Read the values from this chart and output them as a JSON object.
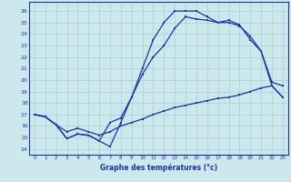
{
  "xlabel": "Graphe des températures (°c)",
  "background_color": "#cce8ec",
  "grid_color": "#aacdd4",
  "line_color": "#1a35a0",
  "xlim": [
    -0.5,
    23.5
  ],
  "ylim": [
    13.5,
    26.8
  ],
  "xticks": [
    0,
    1,
    2,
    3,
    4,
    5,
    6,
    7,
    8,
    9,
    10,
    11,
    12,
    13,
    14,
    15,
    16,
    17,
    18,
    19,
    20,
    21,
    22,
    23
  ],
  "yticks": [
    14,
    15,
    16,
    17,
    18,
    19,
    20,
    21,
    22,
    23,
    24,
    25,
    26
  ],
  "line1_x": [
    0,
    1,
    2,
    3,
    4,
    5,
    6,
    7,
    8,
    9,
    10,
    11,
    12,
    13,
    14,
    15,
    16,
    17,
    18,
    19,
    20,
    21,
    22,
    23
  ],
  "line1_y": [
    17.0,
    16.8,
    16.1,
    14.9,
    15.3,
    15.2,
    14.7,
    14.2,
    16.3,
    18.5,
    21.0,
    23.5,
    25.0,
    26.0,
    26.0,
    26.0,
    25.5,
    25.0,
    25.0,
    24.7,
    23.8,
    22.5,
    19.8,
    19.5
  ],
  "line2_x": [
    0,
    1,
    2,
    3,
    4,
    5,
    6,
    7,
    8,
    9,
    10,
    11,
    12,
    13,
    14,
    15,
    16,
    17,
    18,
    19,
    20,
    21,
    22,
    23
  ],
  "line2_y": [
    17.0,
    16.8,
    16.1,
    14.9,
    15.3,
    15.2,
    14.7,
    16.3,
    16.7,
    18.5,
    20.5,
    22.0,
    23.0,
    24.5,
    25.5,
    25.3,
    25.2,
    25.0,
    25.2,
    24.8,
    23.5,
    22.5,
    19.5,
    18.5
  ],
  "line3_x": [
    0,
    1,
    2,
    3,
    4,
    5,
    6,
    7,
    8,
    9,
    10,
    11,
    12,
    13,
    14,
    15,
    16,
    17,
    18,
    19,
    20,
    21,
    22,
    23
  ],
  "line3_y": [
    17.0,
    16.8,
    16.1,
    15.5,
    15.8,
    15.5,
    15.2,
    15.5,
    16.0,
    16.3,
    16.6,
    17.0,
    17.3,
    17.6,
    17.8,
    18.0,
    18.2,
    18.4,
    18.5,
    18.7,
    19.0,
    19.3,
    19.5,
    18.5
  ]
}
